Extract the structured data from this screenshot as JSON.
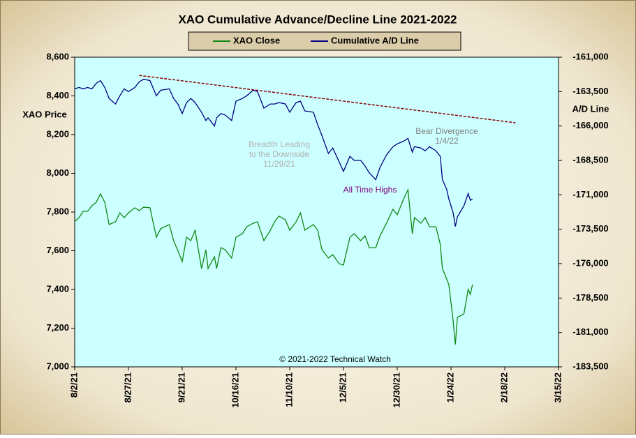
{
  "chart_data": {
    "type": "line",
    "title": "XAO Cumulative Advance/Decline Line 2021-2022",
    "y_label": "XAO Price",
    "y2_label": "A/D Line",
    "legend": "top",
    "plot_background": "#ccffff",
    "x": [
      "2021-08-02",
      "2021-08-04",
      "2021-08-06",
      "2021-08-08",
      "2021-08-10",
      "2021-08-12",
      "2021-08-14",
      "2021-08-16",
      "2021-08-18",
      "2021-08-21",
      "2021-08-23",
      "2021-08-25",
      "2021-08-27",
      "2021-08-30",
      "2021-09-01",
      "2021-09-03",
      "2021-09-06",
      "2021-09-09",
      "2021-09-11",
      "2021-09-15",
      "2021-09-17",
      "2021-09-19",
      "2021-09-21",
      "2021-09-23",
      "2021-09-25",
      "2021-09-27",
      "2021-09-30",
      "2021-10-02",
      "2021-10-03",
      "2021-10-06",
      "2021-10-07",
      "2021-10-09",
      "2021-10-11",
      "2021-10-14",
      "2021-10-16",
      "2021-10-19",
      "2021-10-21",
      "2021-10-24",
      "2021-10-26",
      "2021-10-29",
      "2021-11-01",
      "2021-11-03",
      "2021-11-05",
      "2021-11-08",
      "2021-11-10",
      "2021-11-13",
      "2021-11-15",
      "2021-11-17",
      "2021-11-21",
      "2021-11-23",
      "2021-11-25",
      "2021-11-28",
      "2021-11-30",
      "2021-12-03",
      "2021-12-05",
      "2021-12-08",
      "2021-12-10",
      "2021-12-13",
      "2021-12-15",
      "2021-12-17",
      "2021-12-20",
      "2021-12-22",
      "2021-12-25",
      "2021-12-28",
      "2021-12-30",
      "2022-01-02",
      "2022-01-04",
      "2022-01-06",
      "2022-01-07",
      "2022-01-10",
      "2022-01-12",
      "2022-01-14",
      "2022-01-17",
      "2022-01-19",
      "2022-01-20",
      "2022-01-22",
      "2022-01-23",
      "2022-01-25",
      "2022-01-26",
      "2022-01-27",
      "2022-01-30",
      "2022-02-01",
      "2022-02-02",
      "2022-02-03"
    ],
    "series": [
      {
        "name": "XAO Close",
        "color": "#118811",
        "values": [
          7750,
          7771,
          7804,
          7804,
          7832,
          7850,
          7894,
          7850,
          7735,
          7750,
          7796,
          7771,
          7796,
          7822,
          7807,
          7825,
          7822,
          7670,
          7714,
          7735,
          7652,
          7600,
          7544,
          7670,
          7652,
          7706,
          7508,
          7605,
          7508,
          7569,
          7508,
          7616,
          7605,
          7562,
          7670,
          7688,
          7724,
          7742,
          7750,
          7652,
          7706,
          7750,
          7779,
          7760,
          7706,
          7750,
          7796,
          7706,
          7735,
          7706,
          7605,
          7562,
          7580,
          7533,
          7526,
          7670,
          7688,
          7652,
          7677,
          7616,
          7616,
          7677,
          7742,
          7814,
          7786,
          7868,
          7915,
          7688,
          7771,
          7742,
          7771,
          7724,
          7724,
          7634,
          7508,
          7454,
          7425,
          7238,
          7115,
          7256,
          7274,
          7400,
          7375,
          7425
        ]
      },
      {
        "name": "Cumulative A/D Line",
        "color": "#000080",
        "axis": "y2",
        "values": [
          -163300,
          -163200,
          -163300,
          -163200,
          -163300,
          -162900,
          -162700,
          -163200,
          -164000,
          -164400,
          -163800,
          -163300,
          -163500,
          -163200,
          -162800,
          -162600,
          -162700,
          -163800,
          -163400,
          -163300,
          -164000,
          -164400,
          -165100,
          -164300,
          -164000,
          -164300,
          -165000,
          -165600,
          -165400,
          -166000,
          -165400,
          -165100,
          -165200,
          -165600,
          -164200,
          -164000,
          -163800,
          -163400,
          -163500,
          -164700,
          -164400,
          -164400,
          -164300,
          -164400,
          -165000,
          -164300,
          -164200,
          -164900,
          -165000,
          -165900,
          -166700,
          -168000,
          -167600,
          -168600,
          -169300,
          -168200,
          -168500,
          -168500,
          -168900,
          -169400,
          -169900,
          -169000,
          -168100,
          -167500,
          -167300,
          -167100,
          -166900,
          -167900,
          -167500,
          -167600,
          -167800,
          -167500,
          -167800,
          -168200,
          -169900,
          -170600,
          -171300,
          -172300,
          -173300,
          -172600,
          -171800,
          -170900,
          -171400,
          -171300
        ]
      }
    ],
    "trendline": {
      "x": [
        "2021-09-01",
        "2022-02-23"
      ],
      "values": [
        8506,
        8261
      ],
      "color": "#8b0000"
    },
    "xlim": [
      "2021-08-02",
      "2022-03-15"
    ],
    "xticks": [
      {
        "value": "2021-08-02",
        "label": "8/2/21"
      },
      {
        "value": "2021-08-27",
        "label": "8/27/21"
      },
      {
        "value": "2021-09-21",
        "label": "9/21/21"
      },
      {
        "value": "2021-10-16",
        "label": "10/16/21"
      },
      {
        "value": "2021-11-10",
        "label": "11/10/21"
      },
      {
        "value": "2021-12-05",
        "label": "12/5/21"
      },
      {
        "value": "2021-12-30",
        "label": "12/30/21"
      },
      {
        "value": "2022-01-24",
        "label": "1/24/22"
      },
      {
        "value": "2022-02-18",
        "label": "2/18/22"
      },
      {
        "value": "2022-03-15",
        "label": "3/15/22"
      }
    ],
    "ylim": [
      7000,
      8600
    ],
    "yticks": [
      {
        "value": 7000,
        "label": "7,000"
      },
      {
        "value": 7200,
        "label": "7,200"
      },
      {
        "value": 7400,
        "label": "7,400"
      },
      {
        "value": 7600,
        "label": "7,600"
      },
      {
        "value": 7800,
        "label": "7,800"
      },
      {
        "value": 8000,
        "label": "8,000"
      },
      {
        "value": 8200,
        "label": "8,200"
      },
      {
        "value": 8400,
        "label": "8,400"
      },
      {
        "value": 8600,
        "label": "8,600"
      }
    ],
    "y2lim": [
      -183500,
      -161000
    ],
    "y2ticks": [
      {
        "value": -183500,
        "label": "-183,500"
      },
      {
        "value": -181000,
        "label": "-181,000"
      },
      {
        "value": -178500,
        "label": "-178,500"
      },
      {
        "value": -176000,
        "label": "-176,000"
      },
      {
        "value": -173500,
        "label": "-173,500"
      },
      {
        "value": -171000,
        "label": "-171,000"
      },
      {
        "value": -168500,
        "label": "-168,500"
      },
      {
        "value": -166000,
        "label": "-166,000"
      },
      {
        "value": -163500,
        "label": "-163,500"
      },
      {
        "value": -161000,
        "label": "-161,000"
      }
    ],
    "annotations": [
      {
        "lines": [
          "Breadth Leading",
          "to the Downside",
          "11/29/21"
        ],
        "color": "#b0b0b0"
      },
      {
        "lines": [
          "Bear Divergence",
          "1/4/22"
        ],
        "color": "#808080"
      },
      {
        "lines": [
          "All Time Highs"
        ],
        "color": "#800080"
      },
      {
        "lines": [
          "© 2021-2022  Technical Watch"
        ],
        "color": "#000000"
      }
    ]
  }
}
